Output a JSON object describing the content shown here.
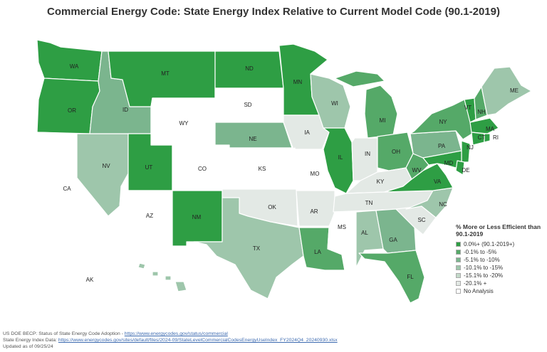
{
  "title": "Commercial Energy Code: State Energy Index Relative to Current Model Code (90.1-2019)",
  "legend": {
    "title": "% More or Less Efficient than 90.1-2019",
    "items": [
      {
        "label": "0.0%+ (90.1-2019+)",
        "color": "#2e9e44"
      },
      {
        "label": "-0.1% to -5%",
        "color": "#55a968"
      },
      {
        "label": "-5.1% to -10%",
        "color": "#7bb58e"
      },
      {
        "label": "-10.1% to -15%",
        "color": "#9ec6ab"
      },
      {
        "label": "-15.1% to -20%",
        "color": "#c3d9c9"
      },
      {
        "label": "-20.1% +",
        "color": "#e3e9e5"
      },
      {
        "label": "No Analysis",
        "color": "#ffffff"
      }
    ]
  },
  "states": {
    "WA": 0,
    "OR": 0,
    "MT": 0,
    "ND": 0,
    "MN": 0,
    "UT": 0,
    "NM": 0,
    "IL": 0,
    "VA": 0,
    "VT": 0,
    "MA": 0,
    "NJ": 0,
    "MD": 0,
    "CT": 0,
    "RI": 0,
    "DE": 0,
    "NY": 1,
    "OH": 1,
    "MI": 1,
    "LA": 1,
    "FL": 1,
    "WV": 1,
    "NH": 1,
    "ID": 2,
    "NE": 2,
    "PA": 2,
    "GA": 2,
    "NV": 3,
    "WI": 3,
    "TX": 3,
    "AL": 3,
    "ME": 3,
    "NC": 3,
    "HI": 3,
    "IA": 5,
    "IN": 5,
    "KY": 5,
    "OK": 5,
    "AR": 5,
    "TN": 5,
    "SC": 5,
    "CA": 6,
    "AZ": 6,
    "WY": 6,
    "CO": 6,
    "SD": 6,
    "KS": 6,
    "MO": 6,
    "MS": 6,
    "AK": 6
  },
  "footer": {
    "line1_text": "US DOE BECP: Status of State Energy Code Adoption - ",
    "line1_link": "https://www.energycodes.gov/status/commercial",
    "line2_text": "State Energy Index Data: ",
    "line2_link": "https://www.energycodes.gov/sites/default/files/2024-09/StateLevelCommercialCodesEnergyUseIndex_FY2024Q4_20240930.xlsx",
    "line3_text": "Updated as of 09/25/24"
  }
}
